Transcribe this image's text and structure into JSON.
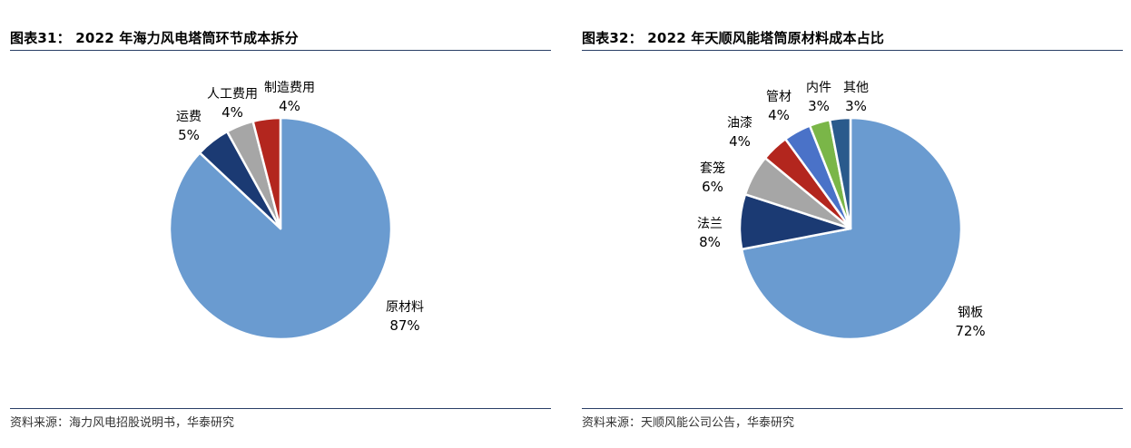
{
  "charts": {
    "left": {
      "title": "图表31： 2022 年海力风电塔筒环节成本拆分",
      "source": "资料来源：海力风电招股说明书，华泰研究"
    },
    "right": {
      "title": "图表32： 2022 年天顺风能塔筒原材料成本占比",
      "source": "资料来源：天顺风能公司公告，华泰研究"
    }
  },
  "chart_data": [
    {
      "type": "pie",
      "title": "图表31： 2022 年海力风电塔筒环节成本拆分",
      "start": "12 o'clock, clockwise",
      "series": [
        {
          "label": "原材料",
          "value": 87,
          "value_text": "87%",
          "color": "#6a9bd0"
        },
        {
          "label": "运费",
          "value": 5,
          "value_text": "5%",
          "color": "#1b3a73"
        },
        {
          "label": "人工费用",
          "value": 4,
          "value_text": "4%",
          "color": "#a6a6a6"
        },
        {
          "label": "制造费用",
          "value": 4,
          "value_text": "4%",
          "color": "#b3261e"
        }
      ]
    },
    {
      "type": "pie",
      "title": "图表32： 2022 年天顺风能塔筒原材料成本占比",
      "start": "12 o'clock, clockwise",
      "series": [
        {
          "label": "钢板",
          "value": 72,
          "value_text": "72%",
          "color": "#6a9bd0"
        },
        {
          "label": "法兰",
          "value": 8,
          "value_text": "8%",
          "color": "#1b3a73"
        },
        {
          "label": "套笼",
          "value": 6,
          "value_text": "6%",
          "color": "#a6a6a6"
        },
        {
          "label": "油漆",
          "value": 4,
          "value_text": "4%",
          "color": "#b3261e"
        },
        {
          "label": "管材",
          "value": 4,
          "value_text": "4%",
          "color": "#4a72c8"
        },
        {
          "label": "内件",
          "value": 3,
          "value_text": "3%",
          "color": "#7ab648"
        },
        {
          "label": "其他",
          "value": 3,
          "value_text": "3%",
          "color": "#2a5a8c"
        }
      ]
    }
  ]
}
